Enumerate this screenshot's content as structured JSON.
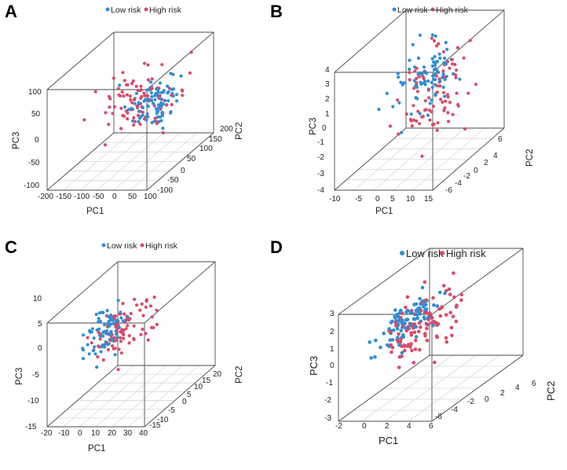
{
  "figure": {
    "colors": {
      "low_risk": "#2d8fd5",
      "high_risk": "#d94a69",
      "box": "#4a4a4a",
      "grid": "#d8d8d8"
    }
  },
  "chart_data": [
    {
      "type": "scatter",
      "panel": "A",
      "legend": [
        "Low risk",
        "High risk"
      ],
      "xlabel": "PC1",
      "ylabel": "PC2",
      "zlabel": "PC3",
      "x_ticks": [
        "-200",
        "-150",
        "-100",
        "-50",
        "0",
        "50",
        "100"
      ],
      "y_ticks": [
        "-100",
        "-50",
        "0",
        "50",
        "100",
        "150",
        "200"
      ],
      "z_ticks": [
        "-100",
        "-50",
        "0",
        "50",
        "100"
      ],
      "xlim": [
        -200,
        100
      ],
      "ylim": [
        -100,
        200
      ],
      "zlim": [
        -100,
        100
      ],
      "low_risk_center": [
        30,
        40,
        20
      ],
      "low_risk_spread": [
        30,
        40,
        18
      ],
      "high_risk_center": [
        -20,
        40,
        25
      ],
      "high_risk_spread": [
        55,
        45,
        25
      ],
      "n_points": 180
    },
    {
      "type": "scatter",
      "panel": "B",
      "legend": [
        "Low risk",
        "High risk"
      ],
      "xlabel": "PC1",
      "ylabel": "PC2",
      "zlabel": "PC3",
      "x_ticks": [
        "-10",
        "-5",
        "0",
        "5",
        "10",
        "15"
      ],
      "y_ticks": [
        "-6",
        "-4",
        "-2",
        "0",
        "2",
        "4",
        "6"
      ],
      "z_ticks": [
        "-4",
        "-3",
        "-2",
        "-1",
        "0",
        "1",
        "2",
        "3",
        "4"
      ],
      "xlim": [
        -10,
        15
      ],
      "ylim": [
        -6,
        6
      ],
      "zlim": [
        -4,
        4
      ],
      "low_risk_center": [
        4,
        0,
        1.5
      ],
      "low_risk_spread": [
        2.5,
        2,
        1.2
      ],
      "high_risk_center": [
        7,
        0,
        1.0
      ],
      "high_risk_spread": [
        3,
        2.2,
        1.5
      ],
      "n_points": 170
    },
    {
      "type": "scatter",
      "panel": "C",
      "legend": [
        "Low risk",
        "High risk"
      ],
      "xlabel": "PC1",
      "ylabel": "PC2",
      "zlabel": "PC3",
      "x_ticks": [
        "-20",
        "-10",
        "0",
        "10",
        "20",
        "30",
        "40"
      ],
      "y_ticks": [
        "-15",
        "-10",
        "-5",
        "0",
        "5",
        "10",
        "15",
        "20"
      ],
      "z_ticks": [
        "-15",
        "-10",
        "-5",
        "0",
        "5",
        "10"
      ],
      "xlim": [
        -20,
        40
      ],
      "ylim": [
        -15,
        20
      ],
      "zlim": [
        -15,
        10
      ],
      "low_risk_center": [
        -2,
        0,
        2
      ],
      "low_risk_spread": [
        3,
        5,
        2.5
      ],
      "high_risk_center": [
        7,
        0,
        2
      ],
      "high_risk_spread": [
        7,
        6,
        3
      ],
      "n_points": 170
    },
    {
      "type": "scatter",
      "panel": "D",
      "legend": [
        "Low risk",
        "High risk"
      ],
      "xlabel": "PC1",
      "ylabel": "PC2",
      "zlabel": "PC3",
      "x_ticks": [
        "-2",
        "0",
        "2",
        "4",
        "6"
      ],
      "y_ticks": [
        "-6",
        "-4",
        "-2",
        "0",
        "2",
        "4",
        "6"
      ],
      "z_ticks": [
        "-3",
        "-2",
        "-1",
        "0",
        "1",
        "2",
        "3"
      ],
      "xlim": [
        -2,
        6
      ],
      "ylim": [
        -6,
        6
      ],
      "zlim": [
        -3,
        3
      ],
      "low_risk_center": [
        0.2,
        0,
        0.8
      ],
      "low_risk_spread": [
        0.4,
        2,
        0.5
      ],
      "high_risk_center": [
        1.4,
        0,
        0.7
      ],
      "high_risk_spread": [
        0.9,
        2.5,
        0.8
      ],
      "n_points": 200
    }
  ]
}
